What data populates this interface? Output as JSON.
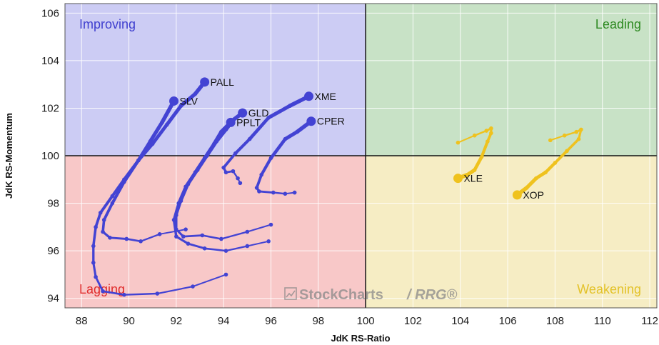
{
  "chart_data": {
    "type": "scatter",
    "title": "",
    "xlabel": "JdK RS-Ratio",
    "ylabel": "JdK RS-Momentum",
    "xlim": [
      87.3,
      112.3
    ],
    "ylim": [
      93.6,
      106.4
    ],
    "x_ticks": [
      88,
      90,
      92,
      94,
      96,
      98,
      100,
      102,
      104,
      106,
      108,
      110,
      112
    ],
    "y_ticks": [
      94,
      96,
      98,
      100,
      102,
      104,
      106
    ],
    "center": [
      100,
      100
    ],
    "grid": true,
    "quadrants": [
      {
        "name": "Improving",
        "color": "#3f3fcf",
        "fill": "#ccccf4",
        "position": "top-left"
      },
      {
        "name": "Leading",
        "color": "#2e8a22",
        "fill": "#c8e2c6",
        "position": "top-right"
      },
      {
        "name": "Lagging",
        "color": "#e02c2c",
        "fill": "#f8c8c8",
        "position": "bottom-left"
      },
      {
        "name": "Weakening",
        "color": "#e3c229",
        "fill": "#f6edc4",
        "position": "bottom-right"
      }
    ],
    "series": [
      {
        "name": "PALL",
        "color": "#4343d3",
        "label_side": "right",
        "points": [
          [
            94.1,
            95.0
          ],
          [
            92.7,
            94.5
          ],
          [
            91.2,
            94.2
          ],
          [
            89.8,
            94.15
          ],
          [
            88.9,
            94.3
          ],
          [
            88.6,
            94.9
          ],
          [
            88.5,
            95.5
          ],
          [
            88.5,
            96.2
          ],
          [
            88.6,
            97.0
          ],
          [
            88.8,
            97.6
          ],
          [
            89.3,
            98.3
          ],
          [
            89.8,
            99.0
          ],
          [
            90.4,
            99.8
          ],
          [
            91.0,
            100.5
          ],
          [
            91.6,
            101.3
          ],
          [
            92.2,
            102.1
          ],
          [
            92.8,
            102.6
          ],
          [
            93.2,
            103.1
          ]
        ]
      },
      {
        "name": "SLV",
        "color": "#4343d3",
        "label_side": "right",
        "points": [
          [
            92.4,
            96.9
          ],
          [
            91.3,
            96.7
          ],
          [
            90.5,
            96.4
          ],
          [
            89.9,
            96.5
          ],
          [
            89.2,
            96.55
          ],
          [
            88.9,
            96.8
          ],
          [
            88.95,
            97.3
          ],
          [
            89.3,
            98.0
          ],
          [
            89.8,
            98.9
          ],
          [
            90.4,
            99.8
          ],
          [
            90.9,
            100.6
          ],
          [
            91.4,
            101.4
          ],
          [
            91.9,
            102.3
          ]
        ]
      },
      {
        "name": "GLD",
        "color": "#4343d3",
        "label_side": "right",
        "points": [
          [
            96.0,
            97.1
          ],
          [
            95.0,
            96.8
          ],
          [
            93.9,
            96.5
          ],
          [
            93.1,
            96.65
          ],
          [
            92.3,
            96.6
          ],
          [
            92.0,
            96.9
          ],
          [
            92.0,
            97.5
          ],
          [
            92.2,
            98.1
          ],
          [
            92.5,
            98.8
          ],
          [
            92.9,
            99.4
          ],
          [
            93.3,
            100.0
          ],
          [
            93.7,
            100.6
          ],
          [
            94.1,
            101.1
          ],
          [
            94.4,
            101.5
          ],
          [
            94.8,
            101.8
          ]
        ]
      },
      {
        "name": "PPLT",
        "color": "#4343d3",
        "label_side": "right",
        "points": [
          [
            95.9,
            96.4
          ],
          [
            95.0,
            96.2
          ],
          [
            94.1,
            96.0
          ],
          [
            93.2,
            96.1
          ],
          [
            92.5,
            96.3
          ],
          [
            92.0,
            96.6
          ],
          [
            91.9,
            97.3
          ],
          [
            92.1,
            98.0
          ],
          [
            92.4,
            98.7
          ],
          [
            92.8,
            99.3
          ],
          [
            93.2,
            99.9
          ],
          [
            93.6,
            100.5
          ],
          [
            93.9,
            101.0
          ],
          [
            94.3,
            101.4
          ]
        ]
      },
      {
        "name": "XME",
        "color": "#4343d3",
        "label_side": "right",
        "points": [
          [
            94.7,
            98.85
          ],
          [
            94.6,
            99.05
          ],
          [
            94.4,
            99.35
          ],
          [
            94.1,
            99.3
          ],
          [
            94.0,
            99.5
          ],
          [
            94.5,
            100.1
          ],
          [
            95.1,
            100.7
          ],
          [
            95.9,
            101.6
          ],
          [
            96.8,
            102.1
          ],
          [
            97.6,
            102.5
          ]
        ]
      },
      {
        "name": "CPER",
        "color": "#4343d3",
        "label_side": "right",
        "points": [
          [
            97.0,
            98.45
          ],
          [
            96.6,
            98.4
          ],
          [
            96.1,
            98.45
          ],
          [
            95.5,
            98.5
          ],
          [
            95.4,
            98.65
          ],
          [
            95.6,
            99.2
          ],
          [
            96.0,
            99.9
          ],
          [
            96.6,
            100.7
          ],
          [
            97.1,
            101.0
          ],
          [
            97.7,
            101.45
          ]
        ]
      },
      {
        "name": "XLE",
        "color": "#efc21e",
        "label_side": "right",
        "points": [
          [
            103.9,
            100.55
          ],
          [
            104.6,
            100.85
          ],
          [
            105.1,
            101.05
          ],
          [
            105.3,
            101.15
          ],
          [
            105.3,
            100.95
          ],
          [
            105.15,
            100.6
          ],
          [
            104.9,
            99.95
          ],
          [
            104.6,
            99.4
          ],
          [
            104.3,
            99.2
          ],
          [
            103.9,
            99.05
          ]
        ]
      },
      {
        "name": "XOP",
        "color": "#efc21e",
        "label_side": "right",
        "points": [
          [
            107.8,
            100.65
          ],
          [
            108.4,
            100.85
          ],
          [
            108.9,
            101.0
          ],
          [
            109.1,
            101.1
          ],
          [
            109.0,
            100.7
          ],
          [
            108.5,
            100.2
          ],
          [
            108.0,
            99.7
          ],
          [
            107.6,
            99.3
          ],
          [
            107.2,
            99.05
          ],
          [
            106.8,
            98.65
          ],
          [
            106.4,
            98.35
          ]
        ]
      }
    ]
  },
  "watermark": {
    "brand": "StockCharts",
    "suffix": "/ RRG®"
  }
}
